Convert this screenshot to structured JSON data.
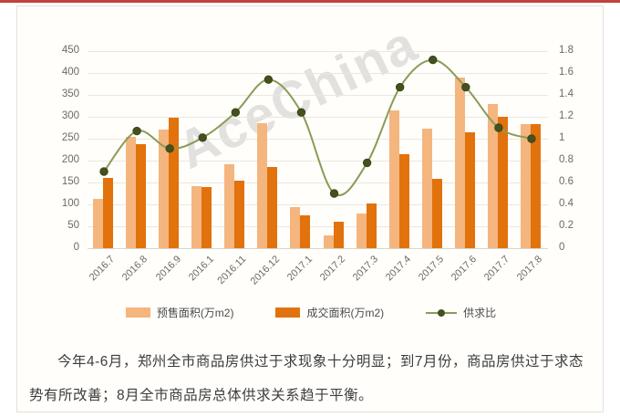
{
  "page": {
    "top_rule_color": "#C2413C",
    "panel_bg": "#FFFEFA",
    "panel_border": "#E3E0DA"
  },
  "watermark": "AceChina",
  "chart_data": {
    "type": "bar",
    "title": "",
    "xlabel": "",
    "ylabel": "",
    "grid": true,
    "legend_position": "bottom",
    "categories": [
      "2016.7",
      "2016.8",
      "2016.9",
      "2016.1",
      "2016.11",
      "2016.12",
      "2017.1",
      "2017.2",
      "2017.3",
      "2017.4",
      "2017.5",
      "2017.6",
      "2017.7",
      "2017.8"
    ],
    "series": [
      {
        "name": "预售面积(万m2)",
        "type": "bar",
        "axis": "left",
        "color": "#F5B57E",
        "values": [
          112,
          255,
          270,
          142,
          192,
          285,
          93,
          30,
          80,
          315,
          272,
          390,
          330,
          283
        ]
      },
      {
        "name": "成交面积(万m2)",
        "type": "bar",
        "axis": "left",
        "color": "#E2720C",
        "values": [
          160,
          238,
          297,
          140,
          155,
          185,
          75,
          60,
          103,
          215,
          158,
          265,
          300,
          284
        ]
      },
      {
        "name": "供求比",
        "type": "line",
        "axis": "right",
        "color": "#8A9B57",
        "marker_color": "#44511F",
        "values": [
          0.7,
          1.07,
          0.91,
          1.01,
          1.24,
          1.54,
          1.24,
          0.5,
          0.78,
          1.47,
          1.72,
          1.47,
          1.1,
          1.0
        ]
      }
    ],
    "left_axis": {
      "min": 0,
      "max": 450,
      "step": 50,
      "ticks": [
        "450",
        "400",
        "350",
        "300",
        "250",
        "200",
        "150",
        "100",
        "50",
        "0"
      ]
    },
    "right_axis": {
      "min": 0,
      "max": 1.8,
      "step": 0.2,
      "ticks": [
        "1.8",
        "1.6",
        "1.4",
        "1.2",
        "1",
        "0.8",
        "0.6",
        "0.4",
        "0.2",
        "0"
      ]
    }
  },
  "article": {
    "paragraph": "今年4-6月，郑州全市商品房供过于求现象十分明显；到7月份，商品房供过于求态势有所改善；8月全市商品房总体供求关系趋于平衡。"
  }
}
